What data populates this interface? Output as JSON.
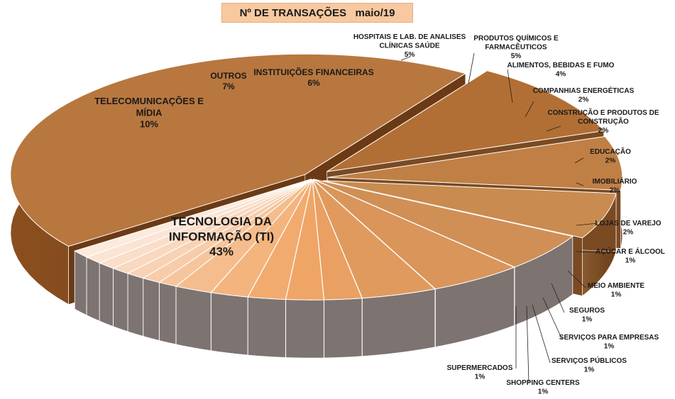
{
  "chart_data": {
    "type": "pie",
    "title": "Nº DE TRANSAÇÕES   maio/19",
    "slices": [
      {
        "label": "TECNOLOGIA DA INFORMAÇÃO (TI)",
        "value_label": "43%",
        "value": 43
      },
      {
        "label": "TELECOMUNICAÇÕES E MÍDIA",
        "value_label": "10%",
        "value": 10
      },
      {
        "label": "OUTROS",
        "value_label": "7%",
        "value": 7
      },
      {
        "label": "INSTITUIÇÕES FINANCEIRAS",
        "value_label": "6%",
        "value": 6
      },
      {
        "label": "HOSPITAIS E LAB. DE ANALISES CLÍNICAS SAÚDE",
        "value_label": "5%",
        "value": 5
      },
      {
        "label": "PRODUTOS QUÍMICOS E FARMACÊUTICOS",
        "value_label": "5%",
        "value": 5
      },
      {
        "label": "ALIMENTOS, BEBIDAS E FUMO",
        "value_label": "4%",
        "value": 4
      },
      {
        "label": "COMPANHIAS ENERGÉTICAS",
        "value_label": "2%",
        "value": 2
      },
      {
        "label": "CONSTRUÇÃO E PRODUTOS DE CONSTRUÇÃO",
        "value_label": "2%",
        "value": 2
      },
      {
        "label": "EDUCAÇÃO",
        "value_label": "2%",
        "value": 2
      },
      {
        "label": "IMOBILIÁRIO",
        "value_label": "2%",
        "value": 2
      },
      {
        "label": "LOJAS DE VAREJO",
        "value_label": "2%",
        "value": 2
      },
      {
        "label": "AÇÚCAR E ÁLCOOL",
        "value_label": "1%",
        "value": 1
      },
      {
        "label": "MEIO AMBIENTE",
        "value_label": "1%",
        "value": 1
      },
      {
        "label": "SEGUROS",
        "value_label": "1%",
        "value": 1
      },
      {
        "label": "SERVIÇOS PARA EMPRESAS",
        "value_label": "1%",
        "value": 1
      },
      {
        "label": "SERVIÇOS PÚBLICOS",
        "value_label": "1%",
        "value": 1
      },
      {
        "label": "SHOPPING CENTERS",
        "value_label": "1%",
        "value": 1
      },
      {
        "label": "SUPERMERCADOS",
        "value_label": "1%",
        "value": 1
      }
    ],
    "style": "3d-exploded",
    "colors": [
      "#b8773f",
      "#b26f35",
      "#c07f45",
      "#c98b4f",
      "#d08f55",
      "#d9955a",
      "#e19a5d",
      "#e9a062",
      "#efa566",
      "#f2ab6f",
      "#f4b47e",
      "#f5bd8d",
      "#f6c59c",
      "#f7ccaa",
      "#f8d2b5",
      "#f9d8bf",
      "#fadec9",
      "#fbe4d3",
      "#fceadd"
    ]
  }
}
